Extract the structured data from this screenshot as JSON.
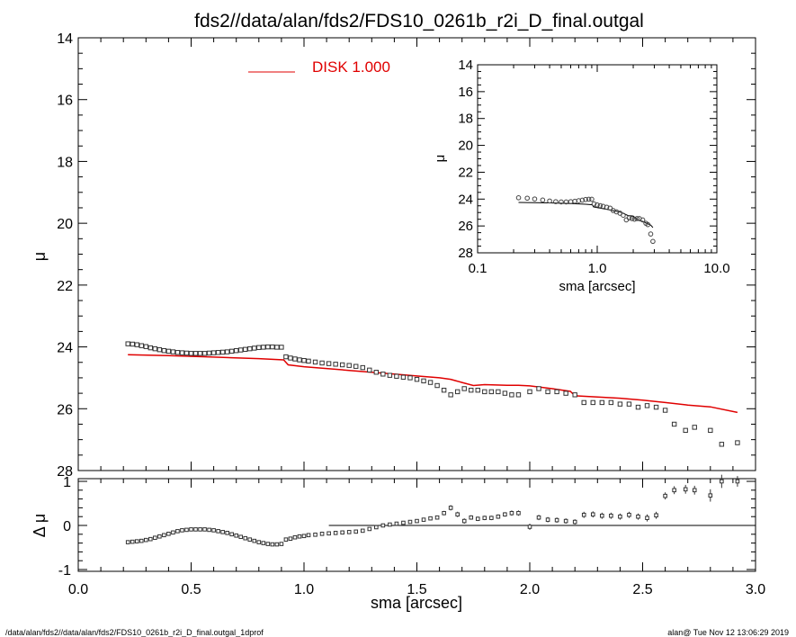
{
  "chart_data": [
    {
      "type": "scatter",
      "title": "fds2//data/alan/fds2/FDS10_0261b_r2i_D_final.outgal",
      "xlabel": "",
      "ylabel": "μ",
      "xlim": [
        0.0,
        3.0
      ],
      "ylim": [
        28,
        14
      ],
      "y_inverted": true,
      "xticks": [
        "0.0",
        "0.5",
        "1.0",
        "1.5",
        "2.0",
        "2.5",
        "3.0"
      ],
      "yticks": [
        "14",
        "16",
        "18",
        "20",
        "22",
        "24",
        "26",
        "28"
      ],
      "legend": {
        "label": "DISK  1.000",
        "color": "#e00000",
        "placement": "top-left"
      },
      "series": [
        {
          "kind": "points",
          "marker": "open-square",
          "x": [
            0.22,
            0.24,
            0.26,
            0.28,
            0.3,
            0.32,
            0.34,
            0.36,
            0.38,
            0.4,
            0.42,
            0.44,
            0.46,
            0.48,
            0.5,
            0.52,
            0.54,
            0.56,
            0.58,
            0.6,
            0.62,
            0.64,
            0.66,
            0.68,
            0.7,
            0.72,
            0.74,
            0.76,
            0.78,
            0.8,
            0.82,
            0.84,
            0.86,
            0.88,
            0.9,
            0.92,
            0.94,
            0.96,
            0.98,
            1.0,
            1.02,
            1.05,
            1.08,
            1.11,
            1.14,
            1.17,
            1.2,
            1.23,
            1.26,
            1.29,
            1.32,
            1.35,
            1.38,
            1.41,
            1.44,
            1.47,
            1.5,
            1.53,
            1.56,
            1.59,
            1.62,
            1.65,
            1.68,
            1.71,
            1.74,
            1.77,
            1.8,
            1.83,
            1.86,
            1.89,
            1.92,
            1.95,
            2.0,
            2.04,
            2.08,
            2.12,
            2.16,
            2.2,
            2.24,
            2.28,
            2.32,
            2.36,
            2.4,
            2.44,
            2.48,
            2.52,
            2.56,
            2.6,
            2.64,
            2.69,
            2.73,
            2.8,
            2.85,
            2.92
          ],
          "y": [
            23.9,
            23.91,
            23.93,
            23.96,
            23.99,
            24.03,
            24.06,
            24.09,
            24.12,
            24.14,
            24.16,
            24.18,
            24.19,
            24.2,
            24.21,
            24.21,
            24.21,
            24.21,
            24.2,
            24.19,
            24.18,
            24.17,
            24.16,
            24.14,
            24.12,
            24.1,
            24.08,
            24.06,
            24.04,
            24.02,
            24.01,
            24.0,
            24.0,
            24.01,
            24.01,
            24.32,
            24.36,
            24.39,
            24.42,
            24.44,
            24.46,
            24.49,
            24.52,
            24.54,
            24.56,
            24.58,
            24.6,
            24.63,
            24.67,
            24.75,
            24.82,
            24.88,
            24.92,
            24.95,
            24.98,
            25.0,
            25.05,
            25.1,
            25.15,
            25.25,
            25.4,
            25.55,
            25.45,
            25.35,
            25.4,
            25.4,
            25.45,
            25.45,
            25.45,
            25.5,
            25.55,
            25.55,
            25.45,
            25.35,
            25.45,
            25.45,
            25.5,
            25.55,
            25.8,
            25.8,
            25.8,
            25.8,
            25.85,
            25.85,
            25.95,
            25.9,
            25.95,
            26.05,
            26.5,
            26.7,
            26.6,
            26.7,
            27.15,
            27.1
          ]
        },
        {
          "kind": "line",
          "name": "DISK  1.000",
          "color": "#e00000",
          "x": [
            0.22,
            0.4,
            0.6,
            0.8,
            0.91,
            0.93,
            1.0,
            1.1,
            1.2,
            1.3,
            1.4,
            1.5,
            1.6,
            1.65,
            1.7,
            1.75,
            1.8,
            1.9,
            1.95,
            2.0,
            2.1,
            2.18,
            2.2,
            2.3,
            2.4,
            2.5,
            2.6,
            2.7,
            2.8,
            2.92
          ],
          "y": [
            24.25,
            24.28,
            24.33,
            24.38,
            24.42,
            24.58,
            24.64,
            24.7,
            24.76,
            24.82,
            24.88,
            24.94,
            25.0,
            25.05,
            25.15,
            25.25,
            25.22,
            25.24,
            25.24,
            25.26,
            25.35,
            25.44,
            25.58,
            25.62,
            25.66,
            25.72,
            25.8,
            25.88,
            25.94,
            26.12
          ]
        }
      ]
    },
    {
      "type": "scatter",
      "title": "",
      "xlabel": "sma [arcsec]",
      "ylabel": "Δ μ",
      "xlim": [
        0.0,
        3.0
      ],
      "ylim": [
        -1,
        1
      ],
      "xticks": [
        "0.0",
        "0.5",
        "1.0",
        "1.5",
        "2.0",
        "2.5",
        "3.0"
      ],
      "yticks": [
        "1",
        "0",
        "-1"
      ],
      "reference_line": {
        "y": 0,
        "x_from": 1.11,
        "x_to": 3.0
      },
      "series": [
        {
          "kind": "points-with-errorbars",
          "marker": "open-square",
          "x": [
            0.22,
            0.24,
            0.26,
            0.28,
            0.3,
            0.32,
            0.34,
            0.36,
            0.38,
            0.4,
            0.42,
            0.44,
            0.46,
            0.48,
            0.5,
            0.52,
            0.54,
            0.56,
            0.58,
            0.6,
            0.62,
            0.64,
            0.66,
            0.68,
            0.7,
            0.72,
            0.74,
            0.76,
            0.78,
            0.8,
            0.82,
            0.84,
            0.86,
            0.88,
            0.9,
            0.92,
            0.94,
            0.96,
            0.98,
            1.0,
            1.02,
            1.05,
            1.08,
            1.11,
            1.14,
            1.17,
            1.2,
            1.23,
            1.26,
            1.29,
            1.32,
            1.35,
            1.38,
            1.41,
            1.44,
            1.47,
            1.5,
            1.53,
            1.56,
            1.59,
            1.62,
            1.65,
            1.68,
            1.71,
            1.74,
            1.77,
            1.8,
            1.83,
            1.86,
            1.89,
            1.92,
            1.95,
            2.0,
            2.04,
            2.08,
            2.12,
            2.16,
            2.2,
            2.24,
            2.28,
            2.32,
            2.36,
            2.4,
            2.44,
            2.48,
            2.52,
            2.56,
            2.6,
            2.64,
            2.69,
            2.73,
            2.8,
            2.85,
            2.92
          ],
          "y": [
            -0.38,
            -0.37,
            -0.36,
            -0.35,
            -0.33,
            -0.31,
            -0.28,
            -0.25,
            -0.22,
            -0.19,
            -0.16,
            -0.13,
            -0.11,
            -0.1,
            -0.09,
            -0.09,
            -0.09,
            -0.09,
            -0.1,
            -0.11,
            -0.13,
            -0.15,
            -0.17,
            -0.2,
            -0.23,
            -0.26,
            -0.29,
            -0.32,
            -0.35,
            -0.38,
            -0.4,
            -0.42,
            -0.43,
            -0.43,
            -0.42,
            -0.32,
            -0.3,
            -0.27,
            -0.25,
            -0.24,
            -0.22,
            -0.21,
            -0.19,
            -0.18,
            -0.17,
            -0.16,
            -0.15,
            -0.14,
            -0.12,
            -0.08,
            -0.04,
            0.0,
            0.02,
            0.04,
            0.06,
            0.08,
            0.1,
            0.13,
            0.16,
            0.18,
            0.28,
            0.4,
            0.25,
            0.1,
            0.18,
            0.15,
            0.17,
            0.17,
            0.2,
            0.25,
            0.28,
            0.28,
            -0.03,
            0.18,
            0.13,
            0.12,
            0.1,
            0.08,
            0.24,
            0.25,
            0.22,
            0.22,
            0.2,
            0.24,
            0.2,
            0.17,
            0.23,
            0.67,
            0.8,
            0.82,
            0.8,
            0.68,
            1.0,
            1.0
          ],
          "err": [
            0.02,
            0.02,
            0.02,
            0.02,
            0.02,
            0.02,
            0.02,
            0.02,
            0.02,
            0.02,
            0.02,
            0.02,
            0.02,
            0.02,
            0.02,
            0.02,
            0.02,
            0.02,
            0.02,
            0.02,
            0.02,
            0.02,
            0.02,
            0.02,
            0.02,
            0.02,
            0.02,
            0.02,
            0.02,
            0.02,
            0.02,
            0.02,
            0.02,
            0.02,
            0.02,
            0.02,
            0.02,
            0.02,
            0.02,
            0.02,
            0.02,
            0.02,
            0.02,
            0.03,
            0.03,
            0.03,
            0.03,
            0.03,
            0.03,
            0.03,
            0.03,
            0.03,
            0.03,
            0.03,
            0.03,
            0.03,
            0.03,
            0.04,
            0.04,
            0.04,
            0.05,
            0.06,
            0.06,
            0.06,
            0.05,
            0.05,
            0.05,
            0.05,
            0.05,
            0.05,
            0.06,
            0.06,
            0.07,
            0.06,
            0.06,
            0.06,
            0.06,
            0.06,
            0.07,
            0.07,
            0.07,
            0.07,
            0.07,
            0.07,
            0.07,
            0.08,
            0.08,
            0.08,
            0.09,
            0.1,
            0.1,
            0.14,
            0.15,
            0.12
          ]
        }
      ]
    },
    {
      "type": "scatter",
      "title": "",
      "xlabel": "sma [arcsec]",
      "ylabel": "μ",
      "xscale": "log",
      "xlim": [
        0.1,
        10.0
      ],
      "ylim": [
        28,
        14
      ],
      "y_inverted": true,
      "xticks": [
        "0.1",
        "1.0",
        "10.0"
      ],
      "yticks": [
        "14",
        "16",
        "18",
        "20",
        "22",
        "24",
        "26",
        "28"
      ],
      "series": [
        {
          "kind": "points",
          "marker": "open-circle",
          "x": [
            0.22,
            0.26,
            0.3,
            0.35,
            0.4,
            0.45,
            0.5,
            0.55,
            0.6,
            0.65,
            0.7,
            0.75,
            0.8,
            0.85,
            0.9,
            0.94,
            1.0,
            1.06,
            1.12,
            1.2,
            1.28,
            1.36,
            1.45,
            1.55,
            1.65,
            1.75,
            1.85,
            1.95,
            2.05,
            2.15,
            2.25,
            2.4,
            2.55,
            2.65,
            2.8,
            2.92
          ],
          "y": [
            23.9,
            23.93,
            23.99,
            24.07,
            24.14,
            24.19,
            24.21,
            24.21,
            24.19,
            24.16,
            24.12,
            24.08,
            24.03,
            24.01,
            24.01,
            24.36,
            24.44,
            24.49,
            24.54,
            24.6,
            24.67,
            24.85,
            24.95,
            25.05,
            25.2,
            25.55,
            25.4,
            25.45,
            25.5,
            25.45,
            25.45,
            25.55,
            25.8,
            25.9,
            26.6,
            27.15
          ]
        },
        {
          "kind": "line",
          "color": "#000000",
          "x": [
            0.22,
            0.4,
            0.6,
            0.8,
            0.91,
            0.93,
            1.0,
            1.2,
            1.4,
            1.6,
            1.8,
            2.0,
            2.2,
            2.4,
            2.6,
            2.8,
            2.92
          ],
          "y": [
            24.25,
            24.28,
            24.33,
            24.38,
            24.42,
            24.58,
            24.64,
            24.76,
            24.88,
            25.0,
            25.22,
            25.26,
            25.58,
            25.66,
            25.8,
            25.94,
            26.12
          ]
        }
      ]
    }
  ],
  "footer": {
    "left": "/data/alan/fds2//data/alan/fds2/FDS10_0261b_r2i_D_final.outgal_1dprof",
    "right": "alan@  Tue Nov 12 13:06:29 2019"
  }
}
